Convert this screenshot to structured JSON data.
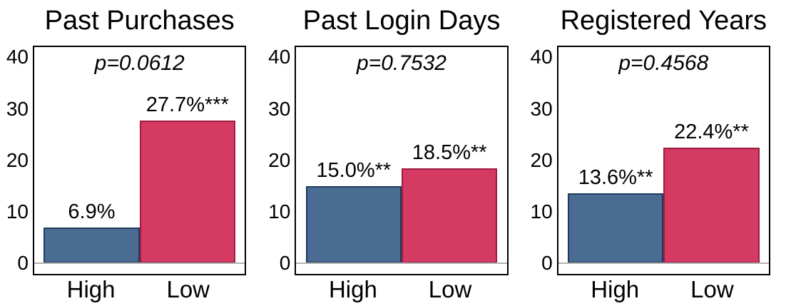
{
  "style": {
    "high_fill": "#4a6c93",
    "high_border": "#1e3c5c",
    "low_fill": "#d53a63",
    "low_border": "#9e1b42",
    "baseline_color": "#b3b3b3",
    "panel_border_color": "#000000",
    "text_color": "#000000",
    "background": "#ffffff"
  },
  "chart_data": [
    {
      "type": "bar",
      "title": "Past Purchases",
      "annotation": "p=0.0612",
      "categories": [
        "High",
        "Low"
      ],
      "values": [
        6.9,
        27.7
      ],
      "bar_labels": [
        "6.9%",
        "27.7%***"
      ],
      "bar_colors": [
        "#4a6c93",
        "#d53a63"
      ],
      "bar_border_colors": [
        "#1e3c5c",
        "#9e1b42"
      ],
      "ylim": [
        0,
        42
      ],
      "yticks": [
        0,
        10,
        20,
        30,
        40
      ],
      "xlabel": "",
      "ylabel": "",
      "grid": false,
      "legend": "none"
    },
    {
      "type": "bar",
      "title": "Past Login Days",
      "annotation": "p=0.7532",
      "categories": [
        "High",
        "Low"
      ],
      "values": [
        15.0,
        18.5
      ],
      "bar_labels": [
        "15.0%**",
        "18.5%**"
      ],
      "bar_colors": [
        "#4a6c93",
        "#d53a63"
      ],
      "bar_border_colors": [
        "#1e3c5c",
        "#9e1b42"
      ],
      "ylim": [
        0,
        42
      ],
      "yticks": [
        0,
        10,
        20,
        30,
        40
      ],
      "xlabel": "",
      "ylabel": "",
      "grid": false,
      "legend": "none"
    },
    {
      "type": "bar",
      "title": "Registered Years",
      "annotation": "p=0.4568",
      "categories": [
        "High",
        "Low"
      ],
      "values": [
        13.6,
        22.4
      ],
      "bar_labels": [
        "13.6%**",
        "22.4%**"
      ],
      "bar_colors": [
        "#4a6c93",
        "#d53a63"
      ],
      "bar_border_colors": [
        "#1e3c5c",
        "#9e1b42"
      ],
      "ylim": [
        0,
        42
      ],
      "yticks": [
        0,
        10,
        20,
        30,
        40
      ],
      "xlabel": "",
      "ylabel": "",
      "grid": false,
      "legend": "none"
    }
  ]
}
